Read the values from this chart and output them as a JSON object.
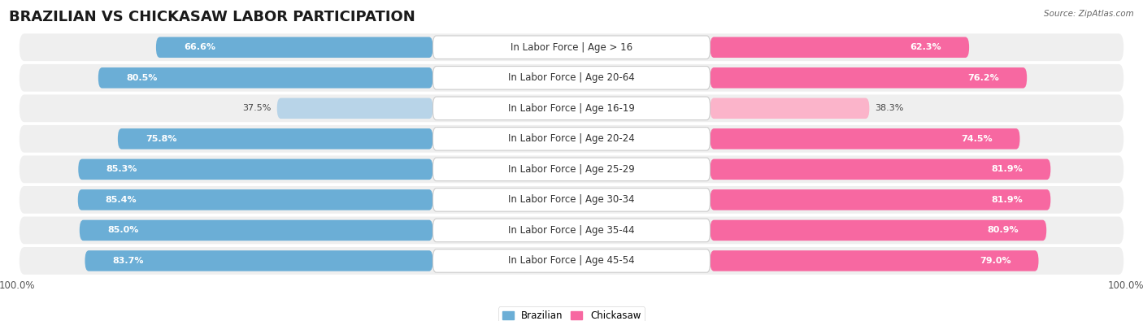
{
  "title": "BRAZILIAN VS CHICKASAW LABOR PARTICIPATION",
  "source": "Source: ZipAtlas.com",
  "categories": [
    "In Labor Force | Age > 16",
    "In Labor Force | Age 20-64",
    "In Labor Force | Age 16-19",
    "In Labor Force | Age 20-24",
    "In Labor Force | Age 25-29",
    "In Labor Force | Age 30-34",
    "In Labor Force | Age 35-44",
    "In Labor Force | Age 45-54"
  ],
  "brazilian": [
    66.6,
    80.5,
    37.5,
    75.8,
    85.3,
    85.4,
    85.0,
    83.7
  ],
  "chickasaw": [
    62.3,
    76.2,
    38.3,
    74.5,
    81.9,
    81.9,
    80.9,
    79.0
  ],
  "brazilian_color": "#6baed6",
  "brazilian_light_color": "#b8d4e8",
  "chickasaw_color": "#f768a1",
  "chickasaw_light_color": "#fbb4ca",
  "row_bg_color": "#efefef",
  "label_fontsize": 8.5,
  "title_fontsize": 13,
  "value_fontsize": 8,
  "max_value": 100.0,
  "left_axis_label": "100.0%",
  "right_axis_label": "100.0%"
}
